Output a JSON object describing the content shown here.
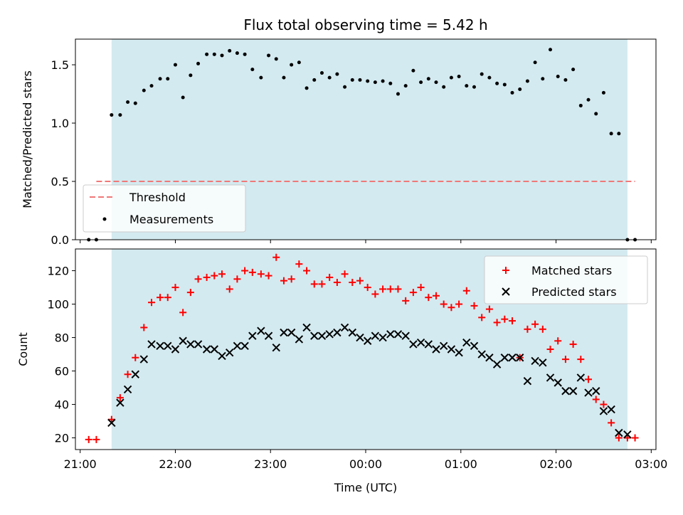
{
  "chart_data": [
    {
      "type": "scatter",
      "title": "Flux total observing time = 5.42 h",
      "ylabel": "Matched/Predicted stars",
      "xlabel": "",
      "xlim": [
        -3.05,
        3.05
      ],
      "ylim": [
        0,
        1.72
      ],
      "x_tick_values": [
        -3,
        -2,
        -1,
        0,
        1,
        2,
        3
      ],
      "y_ticks": [
        {
          "value": 0.0,
          "label": "0.0"
        },
        {
          "value": 0.5,
          "label": "0.5"
        },
        {
          "value": 1.0,
          "label": "1.0"
        },
        {
          "value": 1.5,
          "label": "1.5"
        }
      ],
      "shaded_region": {
        "x_start": -2.67,
        "x_end": 2.75,
        "color": "#d3eaf0"
      },
      "threshold": {
        "name": "Threshold",
        "y": 0.5,
        "x_start": -2.83,
        "x_end": 2.83,
        "color": "#f07878"
      },
      "legend": {
        "placement": "lower-left",
        "entries": [
          "Threshold",
          "Measurements"
        ]
      },
      "series": [
        {
          "name": "Measurements",
          "color": "#000000",
          "marker": "dot",
          "x": [
            -2.91,
            -2.83,
            -2.67,
            -2.58,
            -2.5,
            -2.42,
            -2.33,
            -2.25,
            -2.16,
            -2.08,
            -2.0,
            -1.92,
            -1.84,
            -1.76,
            -1.67,
            -1.59,
            -1.51,
            -1.43,
            -1.35,
            -1.27,
            -1.19,
            -1.1,
            -1.02,
            -0.94,
            -0.86,
            -0.78,
            -0.7,
            -0.62,
            -0.54,
            -0.46,
            -0.38,
            -0.3,
            -0.22,
            -0.14,
            -0.06,
            0.02,
            0.1,
            0.18,
            0.26,
            0.34,
            0.42,
            0.5,
            0.58,
            0.66,
            0.74,
            0.82,
            0.9,
            0.98,
            1.06,
            1.14,
            1.22,
            1.3,
            1.38,
            1.46,
            1.54,
            1.62,
            1.7,
            1.78,
            1.86,
            1.94,
            2.02,
            2.1,
            2.18,
            2.26,
            2.34,
            2.42,
            2.5,
            2.58,
            2.66,
            2.75,
            2.83
          ],
          "y": [
            0.0,
            0.0,
            1.07,
            1.07,
            1.18,
            1.17,
            1.28,
            1.32,
            1.38,
            1.38,
            1.5,
            1.22,
            1.41,
            1.51,
            1.59,
            1.59,
            1.58,
            1.62,
            1.6,
            1.59,
            1.46,
            1.39,
            1.58,
            1.55,
            1.39,
            1.5,
            1.52,
            1.3,
            1.37,
            1.43,
            1.39,
            1.42,
            1.31,
            1.37,
            1.37,
            1.36,
            1.35,
            1.36,
            1.34,
            1.25,
            1.32,
            1.45,
            1.35,
            1.38,
            1.35,
            1.31,
            1.39,
            1.4,
            1.32,
            1.31,
            1.42,
            1.39,
            1.34,
            1.33,
            1.26,
            1.29,
            1.36,
            1.52,
            1.38,
            1.63,
            1.4,
            1.37,
            1.46,
            1.15,
            1.2,
            1.08,
            1.26,
            0.91,
            0.91,
            0.0,
            0.0
          ]
        }
      ]
    },
    {
      "type": "scatter",
      "title": "",
      "ylabel": "Count",
      "xlabel": "Time (UTC)",
      "xlim": [
        -3.05,
        3.05
      ],
      "ylim": [
        13,
        133
      ],
      "x_ticks": [
        {
          "value": -3,
          "label": "21:00"
        },
        {
          "value": -2,
          "label": "22:00"
        },
        {
          "value": -1,
          "label": "23:00"
        },
        {
          "value": 0,
          "label": "00:00"
        },
        {
          "value": 1,
          "label": "01:00"
        },
        {
          "value": 2,
          "label": "02:00"
        },
        {
          "value": 3,
          "label": "03:00"
        }
      ],
      "y_ticks": [
        {
          "value": 20,
          "label": "20"
        },
        {
          "value": 40,
          "label": "40"
        },
        {
          "value": 60,
          "label": "60"
        },
        {
          "value": 80,
          "label": "80"
        },
        {
          "value": 100,
          "label": "100"
        },
        {
          "value": 120,
          "label": "120"
        }
      ],
      "shaded_region": {
        "x_start": -2.67,
        "x_end": 2.75,
        "color": "#d3eaf0"
      },
      "legend": {
        "placement": "upper-right",
        "entries": [
          "Matched stars",
          "Predicted stars"
        ]
      },
      "series": [
        {
          "name": "Matched stars",
          "color": "#ff0000",
          "marker": "plus",
          "x": [
            -2.91,
            -2.83,
            -2.67,
            -2.58,
            -2.5,
            -2.42,
            -2.33,
            -2.25,
            -2.16,
            -2.08,
            -2.0,
            -1.92,
            -1.84,
            -1.76,
            -1.67,
            -1.59,
            -1.51,
            -1.43,
            -1.35,
            -1.27,
            -1.19,
            -1.1,
            -1.02,
            -0.94,
            -0.86,
            -0.78,
            -0.7,
            -0.62,
            -0.54,
            -0.46,
            -0.38,
            -0.3,
            -0.22,
            -0.14,
            -0.06,
            0.02,
            0.1,
            0.18,
            0.26,
            0.34,
            0.42,
            0.5,
            0.58,
            0.66,
            0.74,
            0.82,
            0.9,
            0.98,
            1.06,
            1.14,
            1.22,
            1.3,
            1.38,
            1.46,
            1.54,
            1.62,
            1.7,
            1.78,
            1.86,
            1.94,
            2.02,
            2.1,
            2.18,
            2.26,
            2.34,
            2.42,
            2.5,
            2.58,
            2.66,
            2.75,
            2.83
          ],
          "y": [
            19,
            19,
            31,
            44,
            58,
            68,
            86,
            101,
            104,
            104,
            110,
            95,
            107,
            115,
            116,
            117,
            118,
            109,
            115,
            120,
            119,
            118,
            117,
            128,
            114,
            115,
            124,
            120,
            112,
            112,
            116,
            113,
            118,
            113,
            114,
            110,
            106,
            109,
            109,
            109,
            102,
            107,
            110,
            104,
            105,
            100,
            98,
            100,
            108,
            99,
            92,
            97,
            89,
            91,
            90,
            68,
            85,
            88,
            85,
            73,
            78,
            67,
            76,
            67,
            55,
            43,
            40,
            29,
            20,
            20,
            20
          ]
        },
        {
          "name": "Predicted stars",
          "color": "#000000",
          "marker": "x",
          "x": [
            -2.67,
            -2.58,
            -2.5,
            -2.42,
            -2.33,
            -2.25,
            -2.16,
            -2.08,
            -2.0,
            -1.92,
            -1.84,
            -1.76,
            -1.67,
            -1.59,
            -1.51,
            -1.43,
            -1.35,
            -1.27,
            -1.19,
            -1.1,
            -1.02,
            -0.94,
            -0.86,
            -0.78,
            -0.7,
            -0.62,
            -0.54,
            -0.46,
            -0.38,
            -0.3,
            -0.22,
            -0.14,
            -0.06,
            0.02,
            0.1,
            0.18,
            0.26,
            0.34,
            0.42,
            0.5,
            0.58,
            0.66,
            0.74,
            0.82,
            0.9,
            0.98,
            1.06,
            1.14,
            1.22,
            1.3,
            1.38,
            1.46,
            1.54,
            1.62,
            1.7,
            1.78,
            1.86,
            1.94,
            2.02,
            2.1,
            2.18,
            2.26,
            2.34,
            2.42,
            2.5,
            2.58,
            2.66,
            2.75
          ],
          "y": [
            29,
            41,
            49,
            58,
            67,
            76,
            75,
            75,
            73,
            78,
            76,
            76,
            73,
            73,
            69,
            71,
            75,
            75,
            81,
            84,
            81,
            74,
            83,
            83,
            79,
            86,
            81,
            81,
            82,
            83,
            86,
            83,
            80,
            78,
            81,
            80,
            82,
            82,
            81,
            76,
            77,
            76,
            73,
            75,
            73,
            71,
            77,
            75,
            70,
            68,
            64,
            68,
            68,
            68,
            54,
            66,
            65,
            56,
            53,
            48,
            48,
            56,
            47,
            48,
            36,
            37,
            23,
            22
          ]
        }
      ]
    }
  ]
}
